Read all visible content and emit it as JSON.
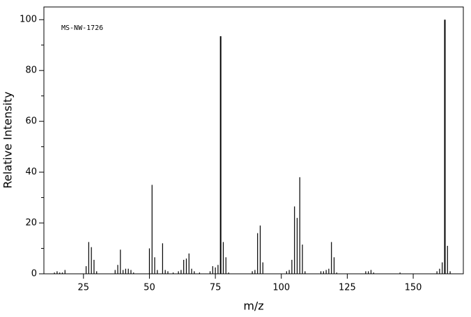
{
  "chart_data": {
    "type": "bar",
    "annotation": "MS-NW-1726",
    "x_label": "m/z",
    "y_label": "Relative Intensity",
    "xlim": [
      10,
      169
    ],
    "ylim": [
      0,
      105
    ],
    "xticks": [
      25,
      50,
      75,
      100,
      125,
      150
    ],
    "yticks": [
      0,
      20,
      40,
      60,
      80,
      100
    ],
    "y_minor_ticks": [
      10,
      30,
      50,
      70,
      90
    ],
    "color": "#000000",
    "x": [
      14,
      15,
      16,
      17,
      18,
      26,
      27,
      28,
      29,
      30,
      37,
      38,
      39,
      40,
      41,
      42,
      43,
      44,
      50,
      51,
      52,
      53,
      55,
      56,
      57,
      59,
      61,
      62,
      63,
      64,
      65,
      66,
      67,
      69,
      73,
      74,
      75,
      76,
      77,
      78,
      79,
      80,
      89,
      90,
      91,
      92,
      93,
      102,
      103,
      104,
      105,
      106,
      107,
      108,
      109,
      115,
      116,
      117,
      118,
      119,
      120,
      121,
      132,
      133,
      134,
      135,
      145,
      159,
      160,
      161,
      162,
      163,
      164
    ],
    "values": [
      0.5,
      1,
      0.5,
      0.5,
      1.5,
      3,
      12.5,
      10.5,
      5.5,
      1,
      1.5,
      3.5,
      9.5,
      1.5,
      2,
      2,
      1.5,
      0.5,
      10,
      35,
      6.5,
      1.5,
      12,
      1.5,
      1,
      0.5,
      1,
      1.5,
      5.5,
      6,
      8,
      2,
      1,
      0.5,
      1,
      3,
      2.5,
      3.5,
      93.5,
      12.5,
      6.5,
      0.5,
      1,
      1.5,
      16,
      19,
      4.5,
      1,
      1.5,
      5.5,
      26.5,
      22,
      38,
      11.5,
      1,
      1,
      1,
      1.5,
      2,
      12.5,
      6.5,
      0.5,
      1,
      1,
      1.5,
      0.5,
      0.5,
      1,
      2,
      4.5,
      100,
      11,
      1
    ]
  }
}
